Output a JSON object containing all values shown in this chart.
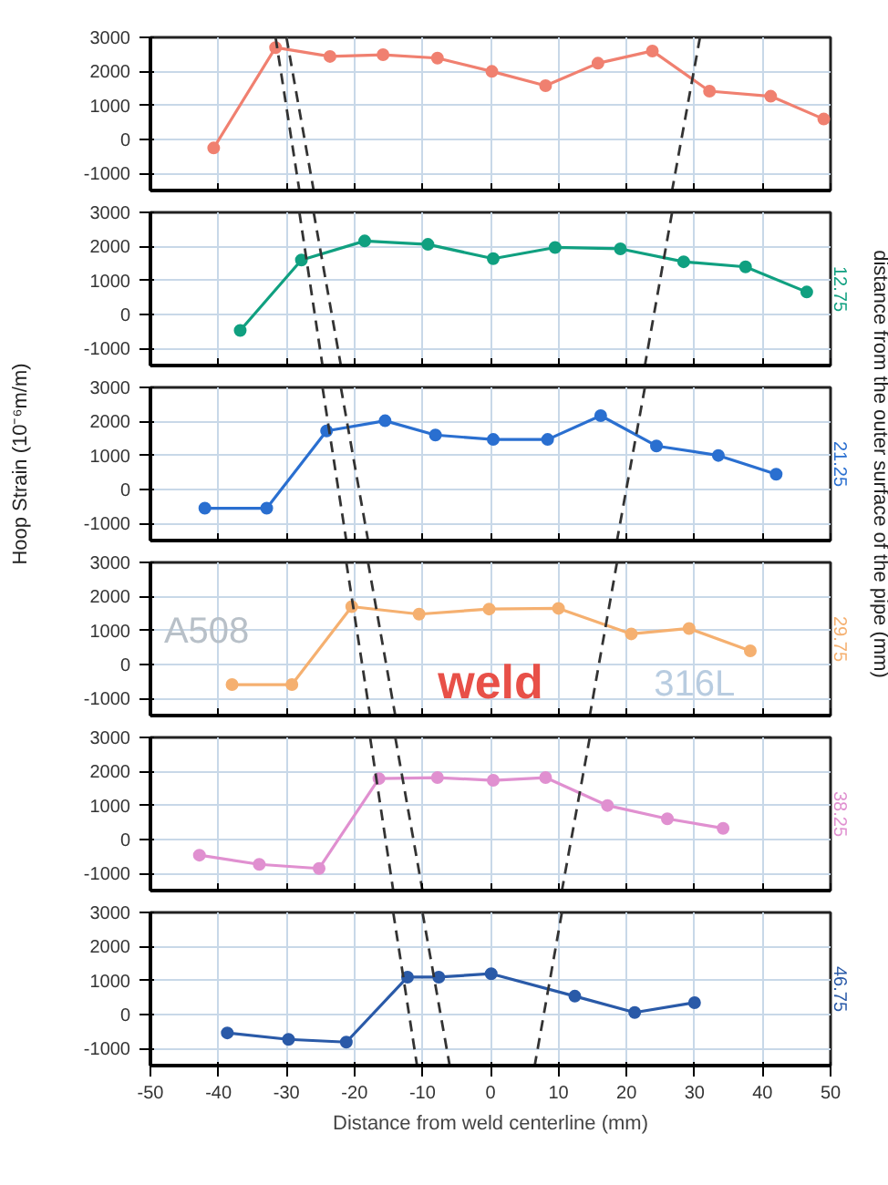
{
  "chart_data": [
    {
      "type": "line",
      "xlim": [
        -50,
        50
      ],
      "xticks": [
        -50,
        -40,
        -30,
        -20,
        -10,
        0,
        10,
        20,
        30,
        40,
        50
      ],
      "ylim": [
        -1500,
        3000
      ],
      "yticks": [
        -1000,
        0,
        1000,
        2000,
        3000
      ],
      "grid": true,
      "marker": "circle",
      "line_style": "solid",
      "tick_labels": "y",
      "series": [
        {
          "color": "#f08070",
          "x": [
            -40.7,
            -31.6,
            -23.6,
            -15.8,
            -7.8,
            0.2,
            8.1,
            15.8,
            23.8,
            32.2,
            41.2,
            49
          ],
          "values": [
            -250,
            2700,
            2440,
            2490,
            2390,
            2000,
            1580,
            2240,
            2600,
            1420,
            1270,
            600
          ]
        },
        {
          "type": "line",
          "color": "#333333",
          "line_style": "dashed",
          "marker": "none",
          "x": [
            -31.6,
            -28.1
          ],
          "values": [
            3000,
            -1500
          ]
        },
        {
          "type": "line",
          "color": "#333333",
          "line_style": "dashed",
          "marker": "none",
          "x": [
            -30,
            -26
          ],
          "values": [
            3000,
            -1500
          ]
        },
        {
          "type": "line",
          "color": "#333333",
          "line_style": "dashed",
          "marker": "none",
          "x": [
            30.8,
            26.7
          ],
          "values": [
            3000,
            -1500
          ]
        }
      ]
    },
    {
      "type": "line",
      "xlim": [
        -50,
        50
      ],
      "xticks": [
        -50,
        -40,
        -30,
        -20,
        -10,
        0,
        10,
        20,
        30,
        40,
        50
      ],
      "ylim": [
        -1500,
        3000
      ],
      "yticks": [
        -1000,
        0,
        1000,
        2000,
        3000
      ],
      "grid": true,
      "marker": "circle",
      "line_style": "solid",
      "tick_labels": "y",
      "series": [
        {
          "name": "12.75",
          "color": "#10a080",
          "x": [
            -36.8,
            -27.8,
            -18.5,
            -9.2,
            0.4,
            9.5,
            19.1,
            28.4,
            37.5,
            46.5
          ],
          "values": [
            -470,
            1600,
            2160,
            2060,
            1640,
            1970,
            1930,
            1550,
            1400,
            660
          ]
        },
        {
          "type": "line",
          "color": "#333333",
          "line_style": "dashed",
          "marker": "none",
          "x": [
            -28.1,
            -24.7
          ],
          "values": [
            3000,
            -1500
          ]
        },
        {
          "type": "line",
          "color": "#333333",
          "line_style": "dashed",
          "marker": "none",
          "x": [
            -26,
            -22
          ],
          "values": [
            3000,
            -1500
          ]
        },
        {
          "type": "line",
          "color": "#333333",
          "line_style": "dashed",
          "marker": "none",
          "x": [
            26.7,
            22.7
          ],
          "values": [
            3000,
            -1500
          ]
        }
      ]
    },
    {
      "type": "line",
      "ylabel": "Hoop Strain (10⁻⁶m/m)",
      "y2label": "distance from the outer surface of the pipe (mm)",
      "xlim": [
        -50,
        50
      ],
      "xticks": [
        -50,
        -40,
        -30,
        -20,
        -10,
        0,
        10,
        20,
        30,
        40,
        50
      ],
      "ylim": [
        -1500,
        3000
      ],
      "yticks": [
        -1000,
        0,
        1000,
        2000,
        3000
      ],
      "grid": true,
      "marker": "circle",
      "line_style": "solid",
      "tick_labels": "y",
      "series": [
        {
          "name": "21.25",
          "color": "#2a6fd0",
          "x": [
            -42,
            -32.9,
            -24.1,
            -15.5,
            -8.1,
            0.4,
            8.4,
            16.2,
            24.4,
            33.5,
            42
          ],
          "values": [
            -550,
            -550,
            1720,
            2020,
            1600,
            1470,
            1470,
            2170,
            1280,
            1000,
            450
          ]
        },
        {
          "type": "line",
          "color": "#333333",
          "line_style": "dashed",
          "marker": "none",
          "x": [
            -24.7,
            -21.2
          ],
          "values": [
            3000,
            -1500
          ]
        },
        {
          "type": "line",
          "color": "#333333",
          "line_style": "dashed",
          "marker": "none",
          "x": [
            -22,
            -18
          ],
          "values": [
            3000,
            -1500
          ]
        },
        {
          "type": "line",
          "color": "#333333",
          "line_style": "dashed",
          "marker": "none",
          "x": [
            22.7,
            18.6
          ],
          "values": [
            3000,
            -1500
          ]
        }
      ]
    },
    {
      "type": "line",
      "xlim": [
        -50,
        50
      ],
      "xticks": [
        -50,
        -40,
        -30,
        -20,
        -10,
        0,
        10,
        20,
        30,
        40,
        50
      ],
      "ylim": [
        -1500,
        3000
      ],
      "yticks": [
        -1000,
        0,
        1000,
        2000,
        3000
      ],
      "grid": true,
      "marker": "circle",
      "line_style": "solid",
      "tick_labels": "y",
      "annotations": [
        "A508",
        "weld",
        "316L"
      ],
      "series": [
        {
          "name": "29.75",
          "color": "#f5b070",
          "x": [
            -38,
            -29.2,
            -20.4,
            -10.5,
            -0.2,
            10,
            20.7,
            29.2,
            38.2
          ],
          "values": [
            -590,
            -590,
            1700,
            1480,
            1630,
            1650,
            900,
            1060,
            400
          ]
        },
        {
          "type": "line",
          "color": "#333333",
          "line_style": "dashed",
          "marker": "none",
          "x": [
            -21.2,
            -17.7
          ],
          "values": [
            3000,
            -1500
          ]
        },
        {
          "type": "line",
          "color": "#333333",
          "line_style": "dashed",
          "marker": "none",
          "x": [
            -18,
            -14
          ],
          "values": [
            3000,
            -1500
          ]
        },
        {
          "type": "line",
          "color": "#333333",
          "line_style": "dashed",
          "marker": "none",
          "x": [
            18.6,
            14.6
          ],
          "values": [
            3000,
            -1500
          ]
        }
      ]
    },
    {
      "type": "line",
      "xlim": [
        -50,
        50
      ],
      "xticks": [
        -50,
        -40,
        -30,
        -20,
        -10,
        0,
        10,
        20,
        30,
        40,
        50
      ],
      "ylim": [
        -1500,
        3000
      ],
      "yticks": [
        -1000,
        0,
        1000,
        2000,
        3000
      ],
      "grid": true,
      "marker": "circle",
      "line_style": "solid",
      "tick_labels": "y",
      "series": [
        {
          "name": "38.25",
          "color": "#e090d0",
          "x": [
            -42.8,
            -34,
            -25.2,
            -16.4,
            -7.8,
            0.4,
            8.1,
            17.2,
            26,
            34.2
          ],
          "values": [
            -460,
            -730,
            -850,
            1790,
            1820,
            1740,
            1820,
            1000,
            610,
            330
          ]
        },
        {
          "type": "line",
          "color": "#333333",
          "line_style": "dashed",
          "marker": "none",
          "x": [
            -17.7,
            -14.3
          ],
          "values": [
            3000,
            -1500
          ]
        },
        {
          "type": "line",
          "color": "#333333",
          "line_style": "dashed",
          "marker": "none",
          "x": [
            -14,
            -10
          ],
          "values": [
            3000,
            -1500
          ]
        },
        {
          "type": "line",
          "color": "#333333",
          "line_style": "dashed",
          "marker": "none",
          "x": [
            14.6,
            10.5
          ],
          "values": [
            3000,
            -1500
          ]
        }
      ]
    },
    {
      "type": "line",
      "xlabel": "Distance from weld centerline (mm)",
      "xlim": [
        -50,
        50
      ],
      "xticks": [
        -50,
        -40,
        -30,
        -20,
        -10,
        0,
        10,
        20,
        30,
        40,
        50
      ],
      "ylim": [
        -1500,
        3000
      ],
      "yticks": [
        -1000,
        0,
        1000,
        2000,
        3000
      ],
      "grid": true,
      "marker": "circle",
      "line_style": "solid",
      "series": [
        {
          "name": "46.75",
          "color": "#2a5aa8",
          "x": [
            -38.7,
            -29.7,
            -21.2,
            -12.2,
            -7.6,
            0.1,
            12.4,
            21.2,
            30
          ],
          "values": [
            -540,
            -730,
            -810,
            1100,
            1100,
            1200,
            540,
            60,
            350
          ]
        },
        {
          "type": "line",
          "color": "#333333",
          "line_style": "dashed",
          "marker": "none",
          "x": [
            -14.3,
            -10.8
          ],
          "values": [
            3000,
            -1500
          ]
        },
        {
          "type": "line",
          "color": "#333333",
          "line_style": "dashed",
          "marker": "none",
          "x": [
            -10,
            -6
          ],
          "values": [
            3000,
            -1500
          ]
        },
        {
          "type": "line",
          "color": "#333333",
          "line_style": "dashed",
          "marker": "none",
          "x": [
            10.5,
            6.5
          ],
          "values": [
            3000,
            -1500
          ]
        }
      ]
    }
  ]
}
